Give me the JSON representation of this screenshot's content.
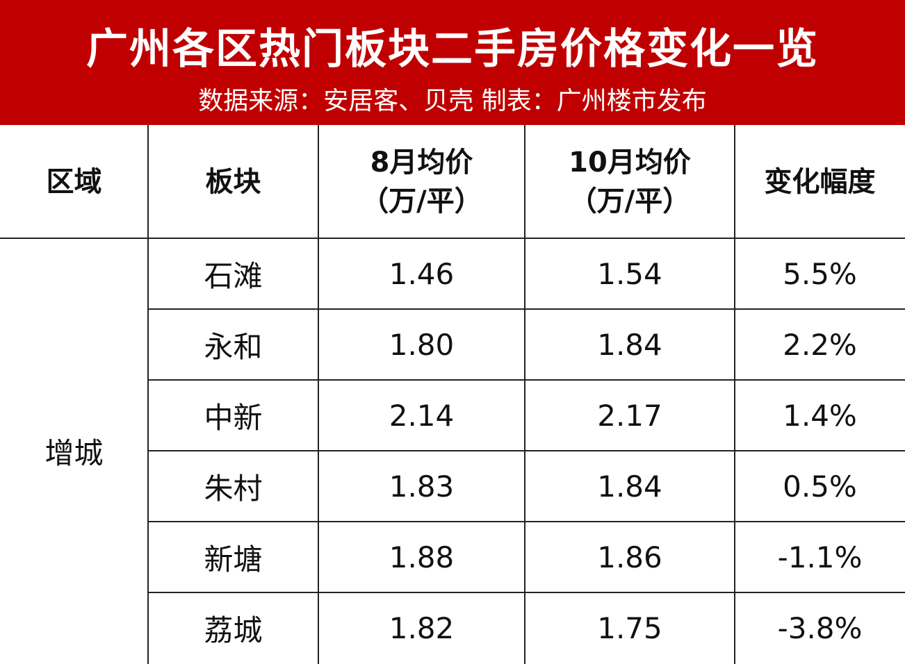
{
  "header": {
    "title": "广州各区热门板块二手房价格变化一览",
    "subtitle": "数据来源：安居客、贝壳  制表：广州楼市发布"
  },
  "table": {
    "columns": [
      [
        "区域"
      ],
      [
        "板块"
      ],
      [
        "8月均价",
        "（万/平）"
      ],
      [
        "10月均价",
        "（万/平）"
      ],
      [
        "变化幅度"
      ]
    ],
    "region": "增城",
    "rows": [
      [
        "石滩",
        "1.46",
        "1.54",
        "5.5%"
      ],
      [
        "永和",
        "1.80",
        "1.84",
        "2.2%"
      ],
      [
        "中新",
        "2.14",
        "2.17",
        "1.4%"
      ],
      [
        "朱村",
        "1.83",
        "1.84",
        "0.5%"
      ],
      [
        "新塘",
        "1.88",
        "1.86",
        "-1.1%"
      ],
      [
        "荔城",
        "1.82",
        "1.75",
        "-3.8%"
      ]
    ]
  }
}
